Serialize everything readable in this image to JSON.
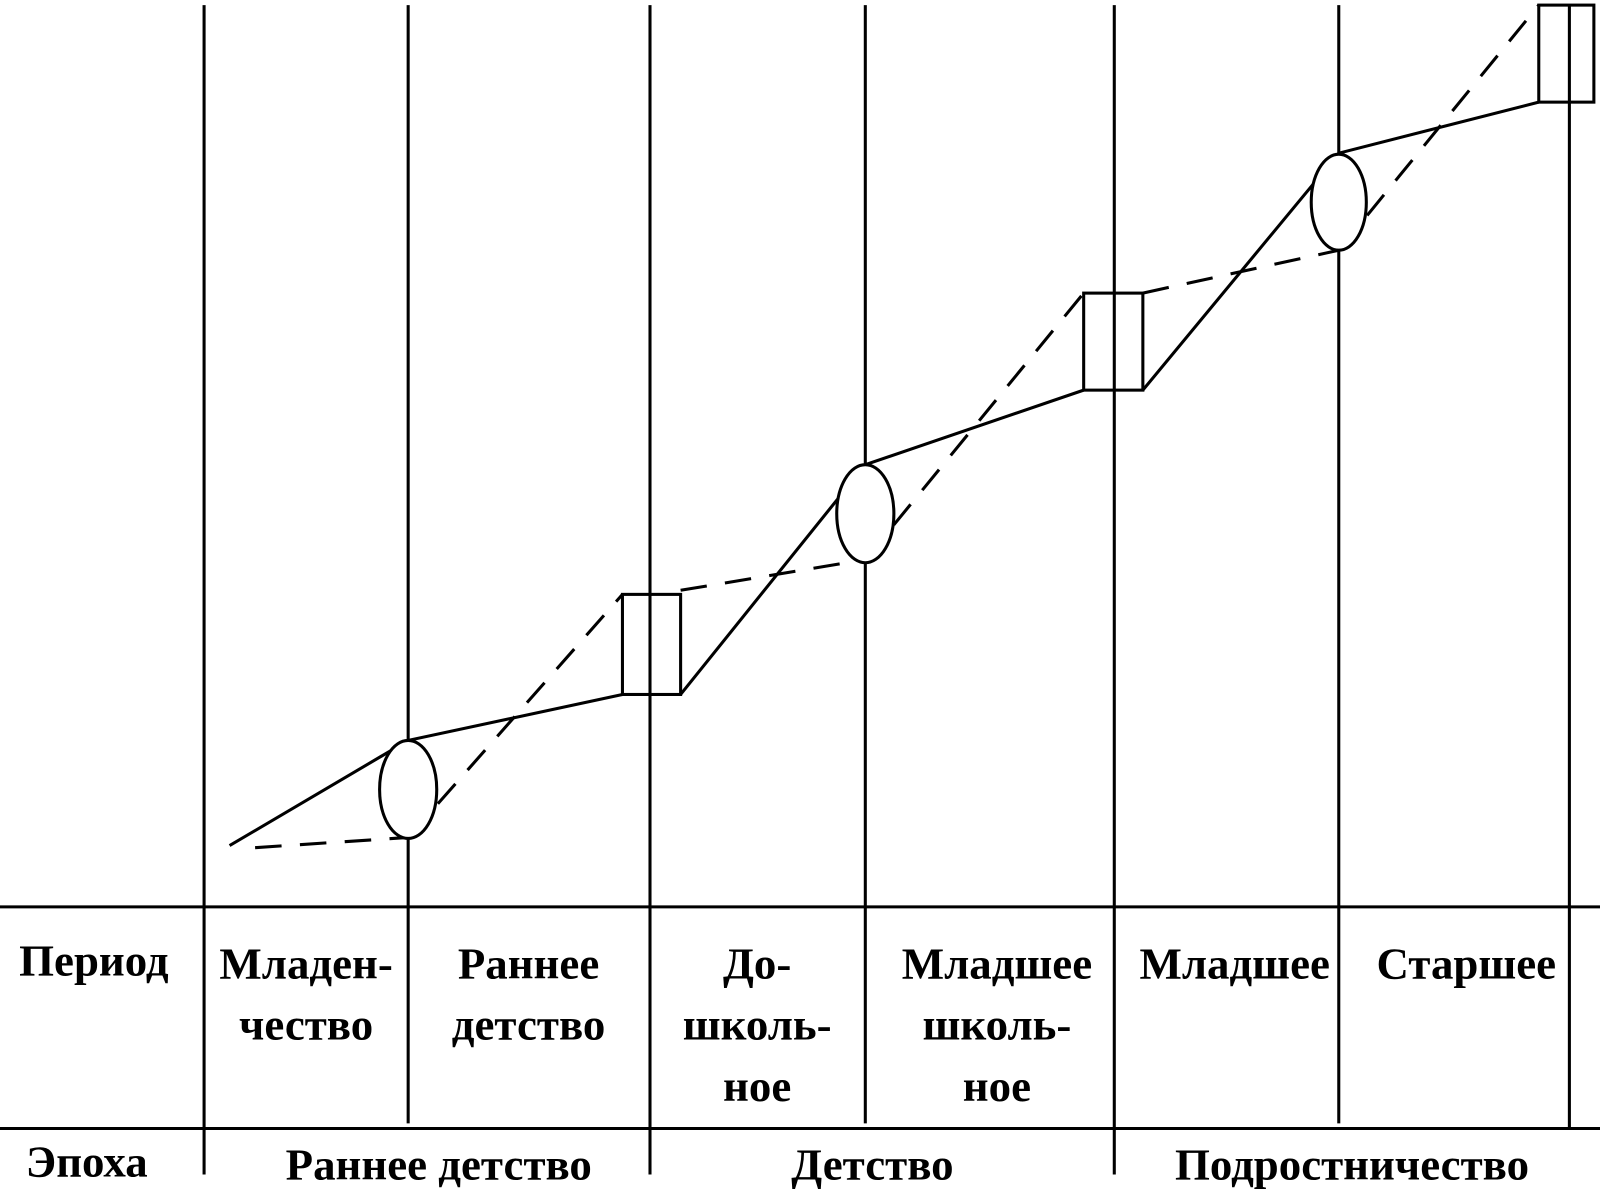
{
  "row_headers": {
    "period": "Период",
    "epoch": "Эпоха"
  },
  "periods": [
    {
      "lines": [
        "Младен-",
        "чество"
      ]
    },
    {
      "lines": [
        "Раннее",
        "детство"
      ]
    },
    {
      "lines": [
        "До-",
        "школь-",
        "ное"
      ]
    },
    {
      "lines": [
        "Младшее",
        "школь-",
        "ное"
      ]
    },
    {
      "lines": [
        "Младшее"
      ]
    },
    {
      "lines": [
        "Старшее"
      ]
    }
  ],
  "epochs": [
    "Раннее детство",
    "Детство",
    "Подростничество"
  ]
}
